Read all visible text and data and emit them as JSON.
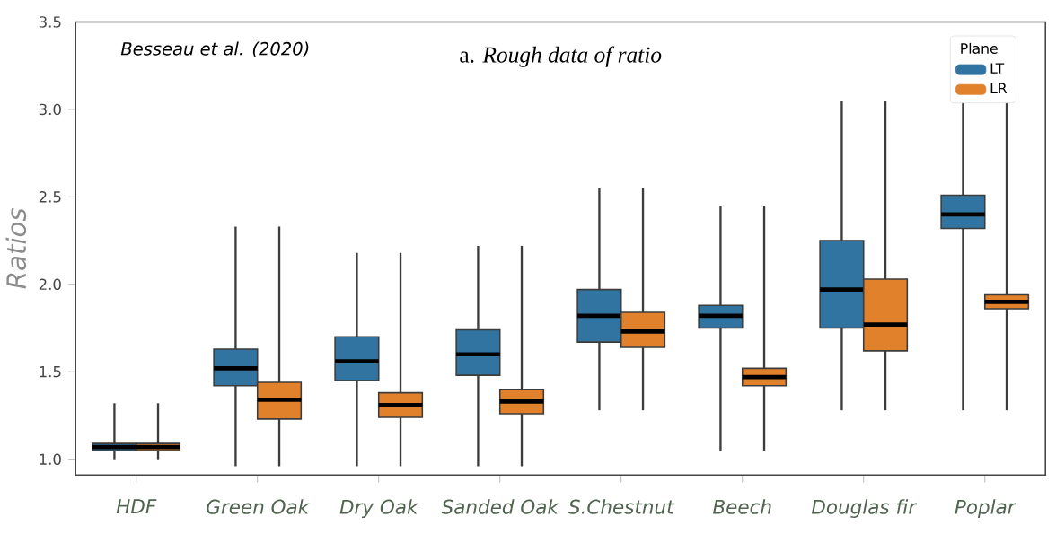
{
  "chart_data": {
    "type": "box",
    "title": "a. *Rough data of ratio*",
    "ylabel": "Ratios",
    "legend_title": "Plane",
    "annotations": [
      "Besseau et al. (2020)"
    ],
    "categories": [
      "HDF",
      "Green Oak",
      "Dry Oak",
      "Sanded Oak",
      "S.Chestnut",
      "Beech",
      "Douglas fir",
      "Poplar"
    ],
    "series": [
      {
        "name": "LT",
        "color": "#3274a1",
        "boxes": [
          {
            "low": 1.0,
            "q1": 1.05,
            "median": 1.07,
            "q3": 1.09,
            "high": 1.32
          },
          {
            "low": 0.96,
            "q1": 1.42,
            "median": 1.52,
            "q3": 1.63,
            "high": 2.33
          },
          {
            "low": 0.96,
            "q1": 1.45,
            "median": 1.56,
            "q3": 1.7,
            "high": 2.18
          },
          {
            "low": 0.96,
            "q1": 1.48,
            "median": 1.6,
            "q3": 1.74,
            "high": 2.22
          },
          {
            "low": 1.28,
            "q1": 1.67,
            "median": 1.82,
            "q3": 1.97,
            "high": 2.55
          },
          {
            "low": 1.05,
            "q1": 1.75,
            "median": 1.82,
            "q3": 1.88,
            "high": 2.45
          },
          {
            "low": 1.28,
            "q1": 1.75,
            "median": 1.97,
            "q3": 2.25,
            "high": 3.05
          },
          {
            "low": 1.28,
            "q1": 2.32,
            "median": 2.4,
            "q3": 2.51,
            "high": 3.1
          }
        ]
      },
      {
        "name": "LR",
        "color": "#e1812c",
        "boxes": [
          {
            "low": 1.0,
            "q1": 1.05,
            "median": 1.07,
            "q3": 1.09,
            "high": 1.32
          },
          {
            "low": 0.96,
            "q1": 1.23,
            "median": 1.34,
            "q3": 1.44,
            "high": 2.33
          },
          {
            "low": 0.96,
            "q1": 1.24,
            "median": 1.31,
            "q3": 1.38,
            "high": 2.18
          },
          {
            "low": 0.96,
            "q1": 1.26,
            "median": 1.33,
            "q3": 1.4,
            "high": 2.22
          },
          {
            "low": 1.28,
            "q1": 1.64,
            "median": 1.73,
            "q3": 1.84,
            "high": 2.55
          },
          {
            "low": 1.05,
            "q1": 1.42,
            "median": 1.47,
            "q3": 1.52,
            "high": 2.45
          },
          {
            "low": 1.28,
            "q1": 1.62,
            "median": 1.77,
            "q3": 2.03,
            "high": 3.05
          },
          {
            "low": 1.28,
            "q1": 1.86,
            "median": 1.9,
            "q3": 1.94,
            "high": 3.1
          }
        ]
      }
    ],
    "ylim": [
      0.91,
      3.5
    ],
    "yticks": [
      {
        "value": 1,
        "label": "1.0"
      },
      {
        "value": 1.5,
        "label": "1.5"
      },
      {
        "value": 2,
        "label": "2.0"
      },
      {
        "value": 2.5,
        "label": "2.5"
      },
      {
        "value": 3,
        "label": "3.0"
      },
      {
        "value": 3.5,
        "label": "3.5"
      }
    ],
    "legend": "top right",
    "grid": false
  }
}
